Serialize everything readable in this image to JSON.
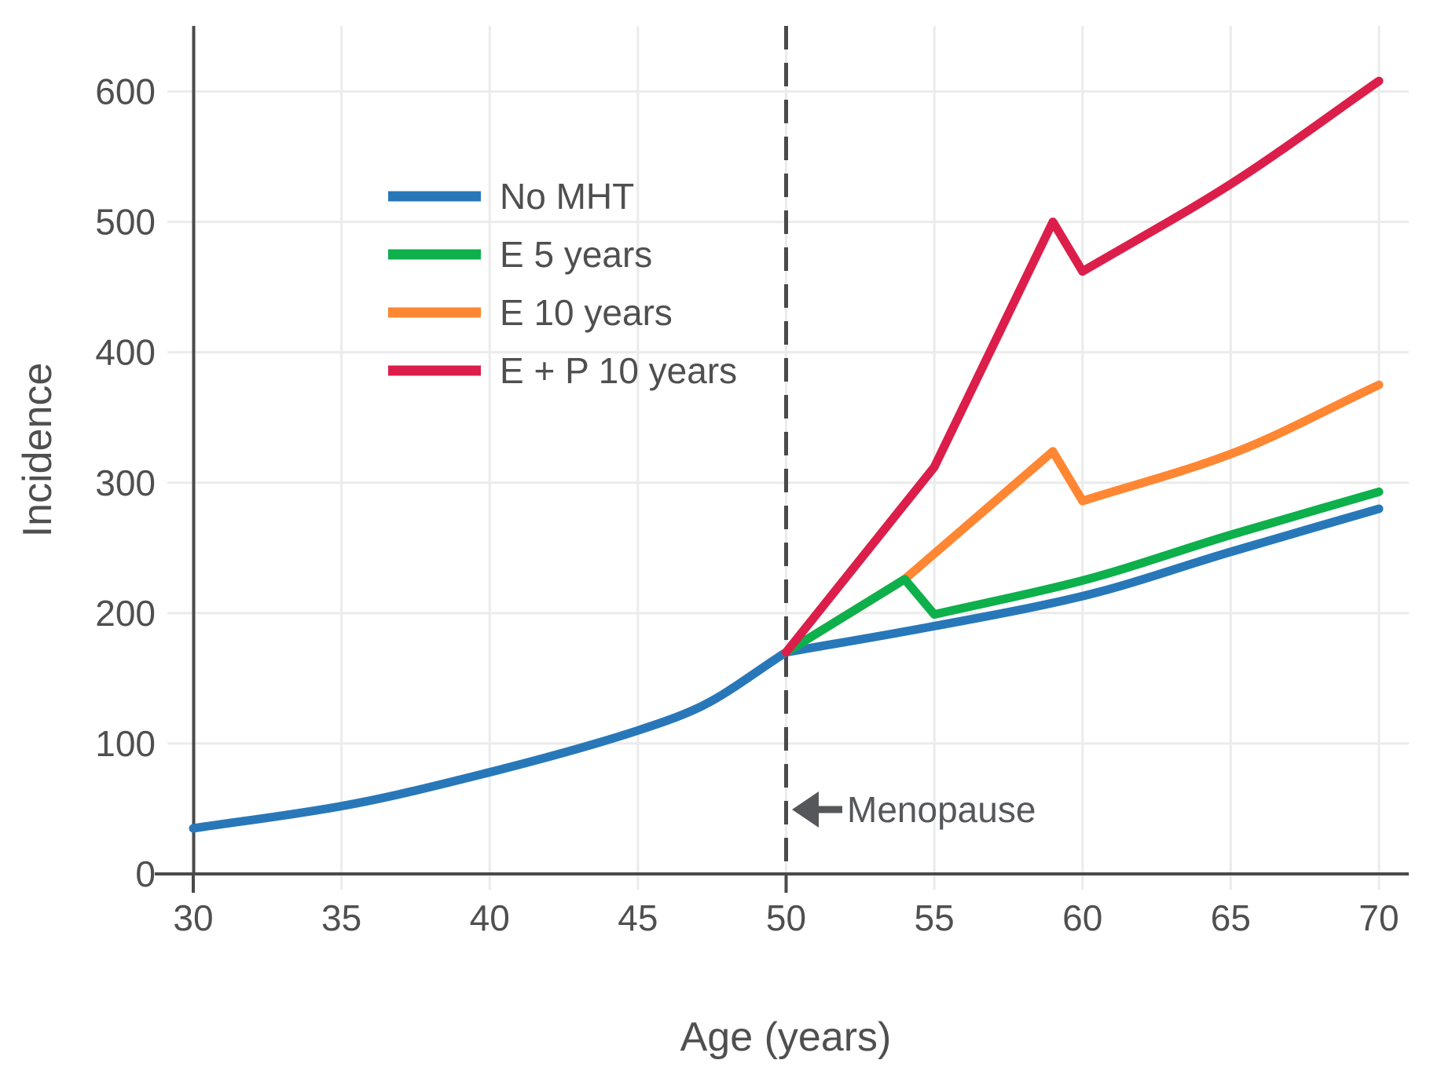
{
  "chart_data": {
    "type": "line",
    "title": "",
    "xlabel": "Age (years)",
    "ylabel": "Incidence",
    "xlim": [
      30,
      70
    ],
    "ylim": [
      0,
      650
    ],
    "x_ticks": [
      30,
      35,
      40,
      45,
      50,
      55,
      60,
      65,
      70
    ],
    "y_ticks": [
      0,
      100,
      200,
      300,
      400,
      500,
      600
    ],
    "grid": true,
    "legend_position": "upper-left-inside",
    "vline": {
      "x": 50,
      "style": "dashed"
    },
    "annotation": {
      "text": "Menopause",
      "arrow_direction": "left",
      "x": 50,
      "y": 48
    },
    "series": [
      {
        "name": "No MHT",
        "color": "#2878b9",
        "segments": [
          {
            "smooth": true,
            "points": [
              [
                30,
                35
              ],
              [
                35,
                52
              ],
              [
                40,
                78
              ],
              [
                45,
                110
              ],
              [
                47,
                127
              ],
              [
                50,
                170
              ]
            ]
          },
          {
            "smooth": true,
            "points": [
              [
                50,
                170
              ],
              [
                55,
                190
              ],
              [
                60,
                213
              ],
              [
                65,
                247
              ],
              [
                70,
                280
              ]
            ]
          }
        ]
      },
      {
        "name": "E 10 years",
        "color": "#ff8632",
        "segments": [
          {
            "smooth": false,
            "points": [
              [
                50,
                170
              ],
              [
                54,
                226
              ],
              [
                59,
                324
              ],
              [
                60,
                286
              ]
            ]
          },
          {
            "smooth": true,
            "points": [
              [
                60,
                286
              ],
              [
                65,
                322
              ],
              [
                70,
                375
              ]
            ]
          }
        ]
      },
      {
        "name": "E 5 years",
        "color": "#0db04b",
        "segments": [
          {
            "smooth": false,
            "points": [
              [
                50,
                170
              ],
              [
                54,
                226
              ],
              [
                55,
                199
              ]
            ]
          },
          {
            "smooth": true,
            "points": [
              [
                55,
                199
              ],
              [
                60,
                225
              ],
              [
                65,
                260
              ],
              [
                70,
                293
              ]
            ]
          }
        ]
      },
      {
        "name": "E + P 10 years",
        "color": "#dc1e4a",
        "segments": [
          {
            "smooth": false,
            "points": [
              [
                50,
                170
              ],
              [
                55,
                312
              ],
              [
                59,
                500
              ],
              [
                60,
                462
              ]
            ]
          },
          {
            "smooth": true,
            "points": [
              [
                60,
                462
              ],
              [
                65,
                529
              ],
              [
                70,
                608
              ]
            ]
          }
        ]
      }
    ],
    "legend": [
      {
        "label": "No MHT",
        "color": "#2878b9"
      },
      {
        "label": "E 5 years",
        "color": "#0db04b"
      },
      {
        "label": "E 10 years",
        "color": "#ff8632"
      },
      {
        "label": "E + P 10 years",
        "color": "#dc1e4a"
      }
    ]
  },
  "colors": {
    "background": "#ffffff",
    "grid": "#ebebeb",
    "axis": "#4a4a4a",
    "text": "#4f4f4f",
    "annotation": "#56575a"
  }
}
